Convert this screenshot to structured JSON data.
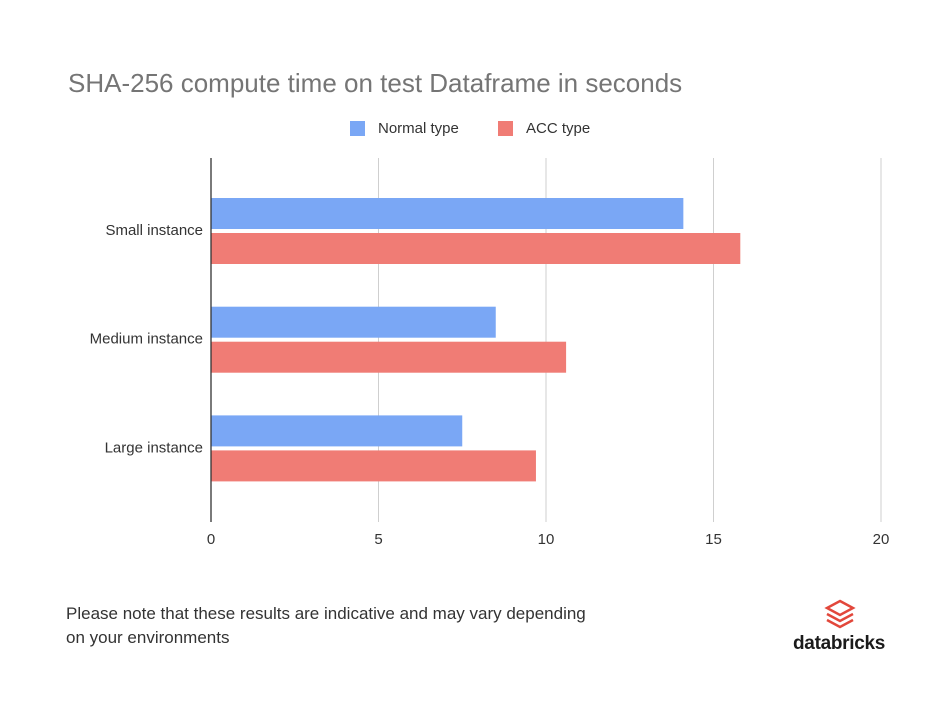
{
  "chart_data": {
    "type": "bar",
    "orientation": "horizontal",
    "title": "SHA-256 compute time on test Dataframe in seconds",
    "categories": [
      "Small instance",
      "Medium instance",
      "Large instance"
    ],
    "series": [
      {
        "name": "Normal type",
        "color": "#7aa7f5",
        "values": [
          14.1,
          8.5,
          7.5
        ]
      },
      {
        "name": "ACC type",
        "color": "#f07c75",
        "values": [
          15.8,
          10.6,
          9.7
        ]
      }
    ],
    "xlim": [
      0,
      20
    ],
    "xticks": [
      0,
      5,
      10,
      15,
      20
    ],
    "grid": true,
    "legend": "top"
  },
  "note": "Please note that these results are indicative and may vary depending on your environments",
  "brand": "databricks"
}
